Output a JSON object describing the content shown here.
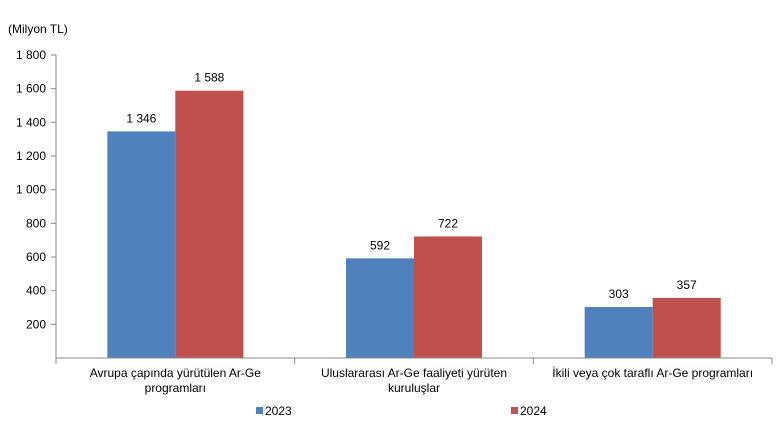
{
  "chart_data": {
    "type": "bar",
    "unit_label": "(Milyon TL)",
    "categories": [
      [
        "Avrupa çapında yürütülen Ar-Ge",
        "programları"
      ],
      [
        "Uluslararası Ar-Ge faaliyeti yürüten",
        "kuruluşlar"
      ],
      [
        "İkili veya çok taraflı Ar-Ge programları"
      ]
    ],
    "series": [
      {
        "name": "2023",
        "color": "#4F81BD",
        "values": [
          1346,
          592,
          303
        ]
      },
      {
        "name": "2024",
        "color": "#C0504D",
        "values": [
          1588,
          722,
          357
        ]
      }
    ],
    "value_labels": [
      [
        "1 346",
        "592",
        "303"
      ],
      [
        "1 588",
        "722",
        "357"
      ]
    ],
    "ylim": [
      0,
      1800
    ],
    "yticks": [
      200,
      400,
      600,
      800,
      1000,
      1200,
      1400,
      1600,
      1800
    ],
    "ytick_labels": [
      "200",
      "400",
      "600",
      "800",
      "1 000",
      "1 200",
      "1 400",
      "1 600",
      "1 800"
    ],
    "grid": false,
    "legend_position": "bottom"
  }
}
